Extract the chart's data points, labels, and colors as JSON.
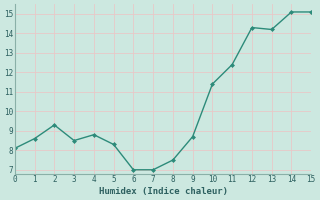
{
  "x": [
    0,
    1,
    2,
    3,
    4,
    5,
    6,
    7,
    8,
    9,
    10,
    11,
    12,
    13,
    14,
    15
  ],
  "y": [
    8.1,
    8.6,
    9.3,
    8.5,
    8.8,
    8.3,
    7.0,
    7.0,
    7.5,
    8.7,
    11.4,
    12.4,
    14.3,
    14.2,
    15.1,
    15.1
  ],
  "xlabel": "Humidex (Indice chaleur)",
  "xlim": [
    0,
    15
  ],
  "ylim": [
    6.8,
    15.5
  ],
  "xticks": [
    0,
    1,
    2,
    3,
    4,
    5,
    6,
    7,
    8,
    9,
    10,
    11,
    12,
    13,
    14,
    15
  ],
  "yticks": [
    7,
    8,
    9,
    10,
    11,
    12,
    13,
    14,
    15
  ],
  "line_color": "#2d8b7a",
  "marker_color": "#2d8b7a",
  "bg_color": "#cce8e0",
  "grid_color": "#e8c8c8",
  "font_color": "#2d6060",
  "spine_color": "#8ab0a8"
}
